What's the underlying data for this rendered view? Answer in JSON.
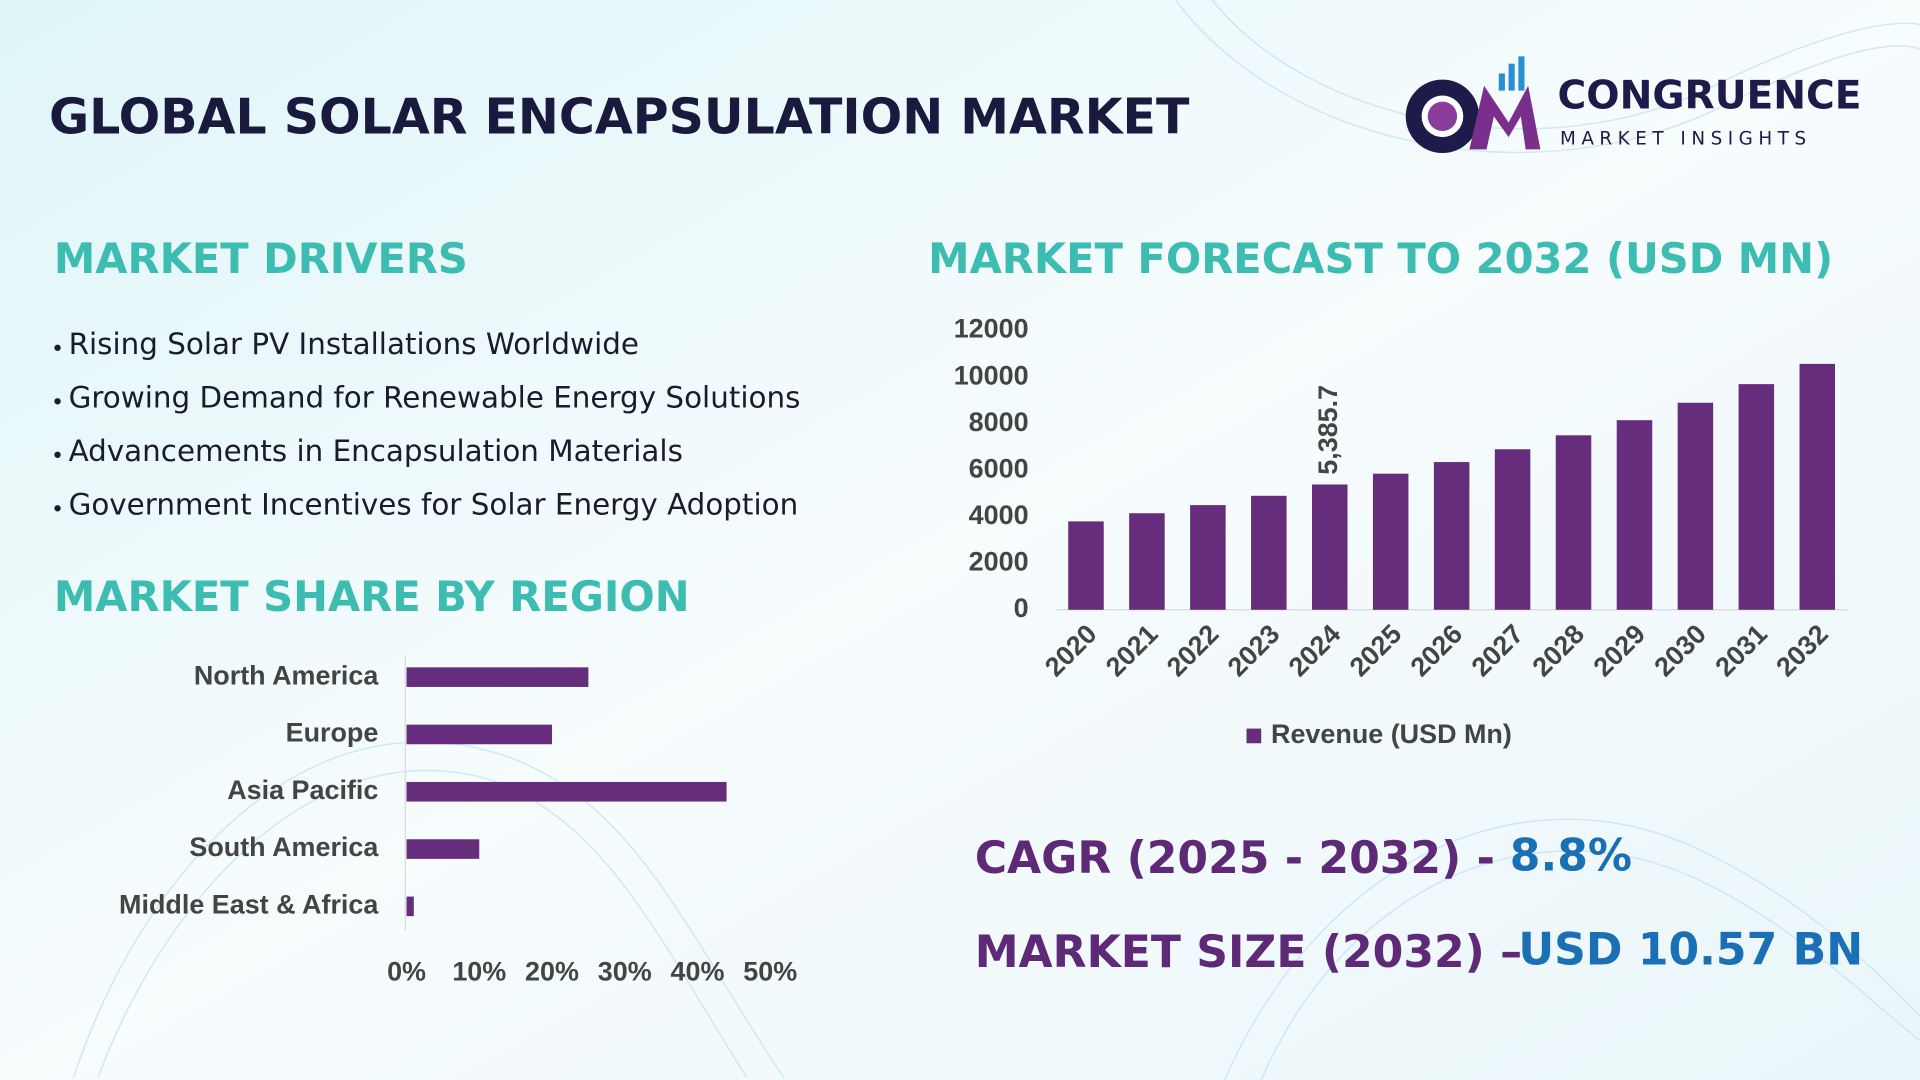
{
  "header": {
    "title": "GLOBAL SOLAR ENCAPSULATION MARKET",
    "logo_name": "CONGRUENCE",
    "logo_tagline": "MARKET INSIGHTS"
  },
  "drivers": {
    "title": "MARKET DRIVERS",
    "items": [
      "Rising Solar PV Installations Worldwide",
      "Growing Demand for Renewable Energy Solutions",
      "Advancements in Encapsulation Materials",
      "Government Incentives for Solar Energy Adoption"
    ]
  },
  "region": {
    "title": "MARKET SHARE BY REGION"
  },
  "forecast": {
    "title": "MARKET FORECAST TO 2032 (USD MN)"
  },
  "stats": {
    "cagr_label": "CAGR (2025 - 2032) -",
    "cagr_value": "8.8%",
    "size_label": "MARKET SIZE (2032) –",
    "size_value": "USD 10.57 BN"
  },
  "chart_data": [
    {
      "type": "bar",
      "orientation": "vertical",
      "categories": [
        "2020",
        "2021",
        "2022",
        "2023",
        "2024",
        "2025",
        "2026",
        "2027",
        "2028",
        "2029",
        "2030",
        "2031",
        "2032"
      ],
      "series": [
        {
          "name": "Revenue (USD Mn)",
          "color": "#652d7c",
          "values": [
            3800,
            4150,
            4500,
            4900,
            5385.7,
            5850,
            6350,
            6900,
            7500,
            8150,
            8900,
            9700,
            10570
          ],
          "value_labels": [
            null,
            null,
            null,
            null,
            "5,385.7",
            null,
            null,
            null,
            null,
            null,
            null,
            null,
            null
          ]
        }
      ],
      "ylim": [
        0,
        12000
      ],
      "yticks": [
        0,
        2000,
        4000,
        6000,
        8000,
        10000,
        12000
      ],
      "grid": false,
      "legend": "bottom"
    },
    {
      "type": "bar",
      "orientation": "horizontal",
      "categories": [
        "North America",
        "Europe",
        "Asia Pacific",
        "South America",
        "Middle East & Africa"
      ],
      "values": [
        25,
        20,
        44,
        10,
        1
      ],
      "color": "#652d7c",
      "xlim": [
        0,
        50
      ],
      "xticks": [
        {
          "value": 0,
          "label": "0%"
        },
        {
          "value": 10,
          "label": "10%"
        },
        {
          "value": 20,
          "label": "20%"
        },
        {
          "value": 30,
          "label": "30%"
        },
        {
          "value": 40,
          "label": "40%"
        },
        {
          "value": 50,
          "label": "50%"
        }
      ],
      "grid": false
    }
  ]
}
